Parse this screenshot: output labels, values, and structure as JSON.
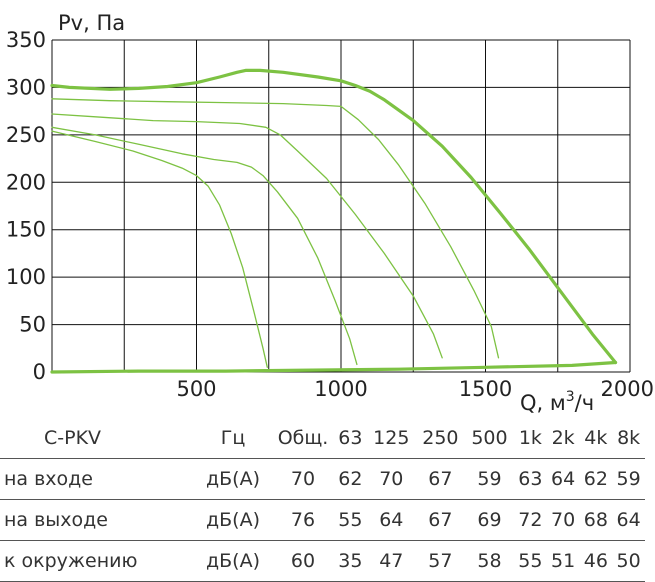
{
  "chart_data": {
    "type": "line",
    "ylabel": "Pv, Па",
    "xlabel": "Q, м³/ч",
    "xlim": [
      0,
      2000
    ],
    "ylim": [
      0,
      350
    ],
    "x_ticks": [
      "500",
      "1000",
      "1500",
      "2000"
    ],
    "y_ticks": [
      "0",
      "50",
      "100",
      "150",
      "200",
      "250",
      "300",
      "350"
    ],
    "grid": true,
    "curves": [
      {
        "name": "",
        "emphasis": "main",
        "points": [
          [
            0,
            302
          ],
          [
            60,
            300
          ],
          [
            200,
            298
          ],
          [
            300,
            299
          ],
          [
            400,
            301
          ],
          [
            500,
            305
          ],
          [
            580,
            311
          ],
          [
            640,
            316
          ],
          [
            670,
            318
          ],
          [
            720,
            318
          ],
          [
            800,
            316
          ],
          [
            920,
            311
          ],
          [
            1000,
            307
          ],
          [
            1050,
            302
          ],
          [
            1100,
            296
          ],
          [
            1150,
            287
          ],
          [
            1250,
            265
          ],
          [
            1350,
            238
          ],
          [
            1450,
            205
          ],
          [
            1550,
            168
          ],
          [
            1650,
            130
          ],
          [
            1760,
            85
          ],
          [
            1870,
            40
          ],
          [
            1950,
            10
          ]
        ]
      },
      {
        "name": "",
        "emphasis": "thin",
        "points": [
          [
            0,
            288
          ],
          [
            200,
            286
          ],
          [
            400,
            285
          ],
          [
            600,
            284
          ],
          [
            800,
            283
          ],
          [
            950,
            281
          ],
          [
            1000,
            280
          ],
          [
            1060,
            266
          ],
          [
            1130,
            245
          ],
          [
            1200,
            218
          ],
          [
            1290,
            178
          ],
          [
            1380,
            132
          ],
          [
            1460,
            86
          ],
          [
            1520,
            48
          ],
          [
            1545,
            15
          ]
        ]
      },
      {
        "name": "",
        "emphasis": "thin",
        "points": [
          [
            0,
            272
          ],
          [
            150,
            269
          ],
          [
            350,
            265
          ],
          [
            500,
            264
          ],
          [
            650,
            262
          ],
          [
            740,
            258
          ],
          [
            790,
            250
          ],
          [
            850,
            233
          ],
          [
            950,
            204
          ],
          [
            1050,
            166
          ],
          [
            1150,
            125
          ],
          [
            1250,
            80
          ],
          [
            1320,
            40
          ],
          [
            1350,
            15
          ]
        ]
      },
      {
        "name": "",
        "emphasis": "thin",
        "points": [
          [
            0,
            258
          ],
          [
            150,
            250
          ],
          [
            300,
            240
          ],
          [
            450,
            230
          ],
          [
            560,
            224
          ],
          [
            640,
            221
          ],
          [
            690,
            216
          ],
          [
            730,
            207
          ],
          [
            780,
            190
          ],
          [
            850,
            162
          ],
          [
            920,
            120
          ],
          [
            980,
            75
          ],
          [
            1030,
            35
          ],
          [
            1055,
            8
          ]
        ]
      },
      {
        "name": "",
        "emphasis": "thin",
        "points": [
          [
            0,
            254
          ],
          [
            150,
            243
          ],
          [
            280,
            233
          ],
          [
            380,
            223
          ],
          [
            450,
            215
          ],
          [
            500,
            207
          ],
          [
            540,
            196
          ],
          [
            580,
            176
          ],
          [
            620,
            146
          ],
          [
            660,
            110
          ],
          [
            700,
            62
          ],
          [
            730,
            25
          ],
          [
            745,
            5
          ]
        ]
      },
      {
        "name": "",
        "emphasis": "main",
        "points": [
          [
            0,
            0
          ],
          [
            300,
            1
          ],
          [
            600,
            1
          ],
          [
            900,
            2
          ],
          [
            1200,
            3
          ],
          [
            1500,
            5
          ],
          [
            1800,
            7
          ],
          [
            1950,
            10
          ]
        ]
      }
    ]
  },
  "table": {
    "model": "C-PKV",
    "hz": "Гц",
    "columns": [
      "Общ.",
      "63",
      "125",
      "250",
      "500",
      "1k",
      "2k",
      "4k",
      "8k"
    ],
    "rows": [
      {
        "label": "на входе",
        "unit": "дБ(А)",
        "values": [
          "70",
          "62",
          "70",
          "67",
          "59",
          "63",
          "64",
          "62",
          "59"
        ]
      },
      {
        "label": "на выходе",
        "unit": "дБ(А)",
        "values": [
          "76",
          "55",
          "64",
          "67",
          "69",
          "72",
          "70",
          "68",
          "64"
        ]
      },
      {
        "label": "к окружению",
        "unit": "дБ(А)",
        "values": [
          "60",
          "35",
          "47",
          "57",
          "58",
          "55",
          "51",
          "46",
          "50"
        ]
      }
    ]
  },
  "colors": {
    "curve": "#7dc243",
    "grid": "#111111",
    "text": "#222222"
  }
}
